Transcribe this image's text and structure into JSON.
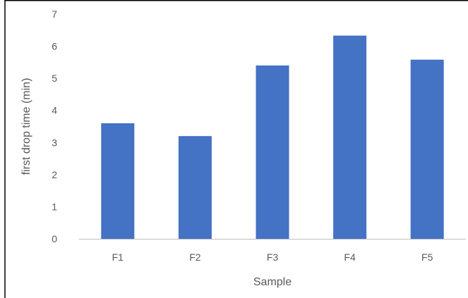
{
  "chart_data": {
    "type": "bar",
    "title": "",
    "xlabel": "Sample",
    "ylabel": "first drop time (min)",
    "categories": [
      "F1",
      "F2",
      "F3",
      "F4",
      "F5"
    ],
    "values": [
      3.6,
      3.2,
      5.4,
      6.33,
      5.58
    ],
    "ylim": [
      0,
      7
    ],
    "yticks": [
      "0",
      "1",
      "2",
      "3",
      "4",
      "5",
      "6",
      "7"
    ],
    "grid": false,
    "legend": "none",
    "bar_color": "#4472C4",
    "axis_color": "#BFBFBF",
    "text_color": "#595959"
  }
}
